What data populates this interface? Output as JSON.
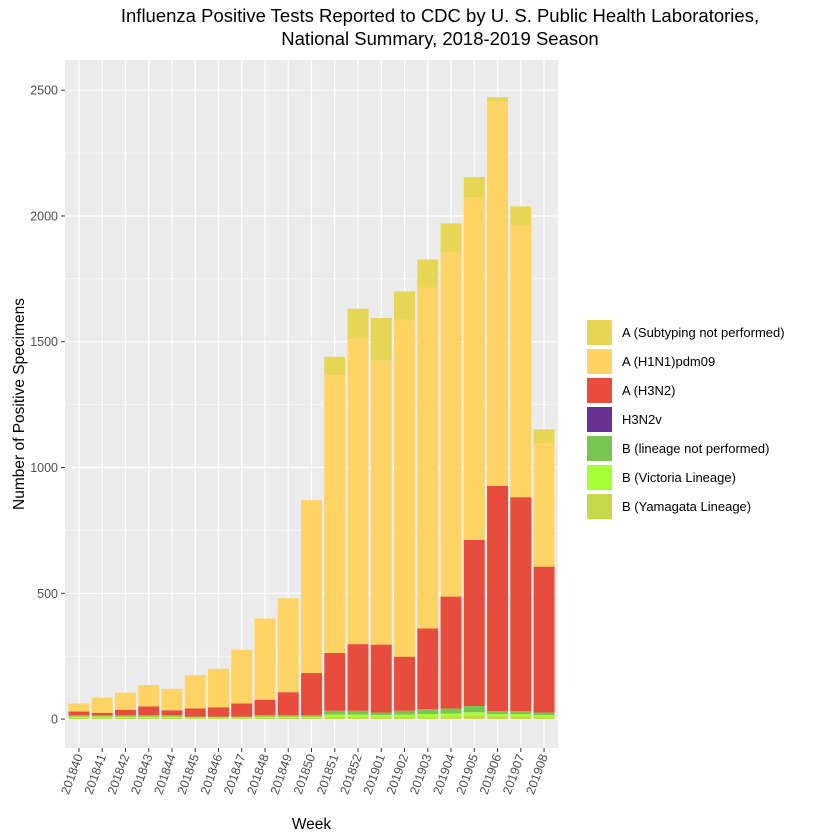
{
  "chart_data": {
    "type": "bar",
    "stacked": true,
    "title_line1": "Influenza Positive Tests Reported to CDC by U. S. Public Health Laboratories,",
    "title_line2": "National Summary, 2018-2019 Season",
    "xlabel": "Week",
    "ylabel": "Number of Positive Specimens",
    "ylim": [
      -115,
      2620
    ],
    "yticks": [
      0,
      500,
      1000,
      1500,
      2000,
      2500
    ],
    "grid": true,
    "legend_position": "right",
    "categories": [
      "201840",
      "201841",
      "201842",
      "201843",
      "201844",
      "201845",
      "201846",
      "201847",
      "201848",
      "201849",
      "201850",
      "201851",
      "201852",
      "201901",
      "201902",
      "201903",
      "201904",
      "201905",
      "201906",
      "201907",
      "201908"
    ],
    "series": [
      {
        "name": "B (Yamagata Lineage)",
        "color": "#c5d846",
        "values": [
          5,
          5,
          5,
          5,
          5,
          3,
          3,
          3,
          5,
          5,
          5,
          8,
          8,
          8,
          8,
          8,
          10,
          12,
          10,
          10,
          8
        ]
      },
      {
        "name": "B (Victoria Lineage)",
        "color": "#a6ff33",
        "values": [
          5,
          5,
          5,
          5,
          5,
          4,
          4,
          4,
          5,
          5,
          5,
          10,
          10,
          8,
          10,
          12,
          12,
          15,
          10,
          10,
          8
        ]
      },
      {
        "name": "B (lineage not performed)",
        "color": "#79c551",
        "values": [
          5,
          5,
          5,
          5,
          5,
          3,
          3,
          3,
          5,
          5,
          5,
          15,
          15,
          10,
          15,
          20,
          20,
          25,
          12,
          12,
          10
        ]
      },
      {
        "name": "H3N2v",
        "color": "#6a3195",
        "values": [
          0,
          0,
          0,
          0,
          0,
          0,
          0,
          0,
          0,
          0,
          0,
          0,
          0,
          0,
          0,
          0,
          0,
          0,
          0,
          0,
          0
        ]
      },
      {
        "name": "A (H3N2)",
        "color": "#e84c3d",
        "values": [
          15,
          10,
          22,
          35,
          20,
          32,
          37,
          52,
          62,
          92,
          168,
          230,
          265,
          270,
          215,
          320,
          445,
          660,
          895,
          850,
          580
        ]
      },
      {
        "name": "A (H1N1)pdm09",
        "color": "#ffd464",
        "values": [
          32,
          60,
          68,
          85,
          85,
          133,
          153,
          213,
          323,
          373,
          687,
          1105,
          1215,
          1130,
          1340,
          1355,
          1370,
          1363,
          1528,
          1080,
          490
        ]
      },
      {
        "name": "A (Subtyping not performed)",
        "color": "#e6d654",
        "values": [
          0,
          0,
          0,
          0,
          0,
          0,
          0,
          0,
          0,
          0,
          0,
          72,
          118,
          168,
          112,
          112,
          113,
          80,
          17,
          76,
          56
        ]
      }
    ]
  }
}
